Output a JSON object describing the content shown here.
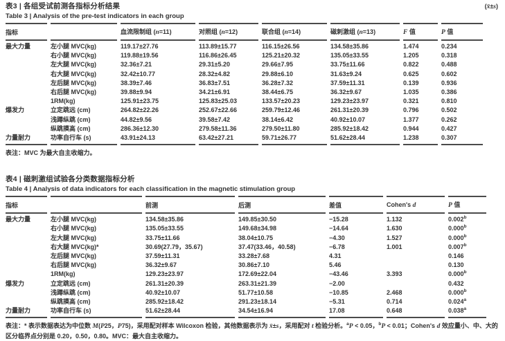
{
  "page": {
    "background": "#ffffff",
    "text_color": "#333333",
    "rule_color": "#4a4a4a"
  },
  "table3": {
    "title_zh": "表3 | 各组受试前测各指标分析结果",
    "title_en": "Table 3 | Analysis of the pre-test indicators in each group",
    "unit_note": "(~x̄~±~s~)",
    "columns": [
      "指标",
      "",
      "血流限制组 (~n~=11)",
      "对照组 (~n~=12)",
      "联合组 (~n~=14)",
      "磁刺激组 (~n~=13)",
      "~F~ 值",
      "~P~ 值"
    ],
    "rows": [
      [
        "最大力量",
        "左小腿 MVC(kg)",
        "119.17±27.76",
        "113.89±15.77",
        "116.15±26.56",
        "134.58±35.86",
        "1.474",
        "0.234"
      ],
      [
        "",
        "右小腿 MVC(kg)",
        "119.88±19.56",
        "116.86±26.45",
        "125.21±20.32",
        "135.05±33.55",
        "1.205",
        "0.318"
      ],
      [
        "",
        "左大腿 MVC(kg)",
        "32.36±7.21",
        "29.31±5.20",
        "29.66±7.95",
        "33.75±11.66",
        "0.822",
        "0.488"
      ],
      [
        "",
        "右大腿 MVC(kg)",
        "32.42±10.77",
        "28.32±4.82",
        "29.88±6.10",
        "31.63±9.24",
        "0.625",
        "0.602"
      ],
      [
        "",
        "左后腿 MVC(kg)",
        "38.39±7.46",
        "36.83±7.51",
        "36.28±7.32",
        "37.59±11.31",
        "0.139",
        "0.936"
      ],
      [
        "",
        "右后腿 MVC(kg)",
        "39.88±9.94",
        "34.21±6.91",
        "38.44±6.75",
        "36.32±9.67",
        "1.035",
        "0.386"
      ],
      [
        "",
        "1RM(kg)",
        "125.91±23.75",
        "125.83±25.03",
        "133.57±20.23",
        "129.23±23.97",
        "0.321",
        "0.810"
      ],
      [
        "爆发力",
        "立定跳远 (cm)",
        "264.82±22.26",
        "252.67±22.66",
        "259.79±12.46",
        "261.31±20.39",
        "0.796",
        "0.502"
      ],
      [
        "",
        "浅蹲纵跳 (cm)",
        "44.82±9.56",
        "39.58±7.42",
        "38.14±6.42",
        "40.92±10.07",
        "1.377",
        "0.262"
      ],
      [
        "",
        "纵跳摸高 (cm)",
        "286.36±12.30",
        "279.58±11.36",
        "279.50±11.80",
        "285.92±18.42",
        "0.944",
        "0.427"
      ],
      [
        "力量耐力",
        "功率自行车 (s)",
        "43.91±24.13",
        "63.42±27.21",
        "59.71±26.77",
        "51.62±28.44",
        "1.238",
        "0.307"
      ]
    ],
    "note": "表注：MVC 为最大自主收缩力。"
  },
  "table4": {
    "title_zh": "表4 | 磁刺激组试验各分类数据指标分析",
    "title_en": "Table 4 | Analysis of data indicators for each classification in the magnetic stimulation group",
    "columns": [
      "指标",
      "",
      "前测",
      "后测",
      "差值",
      "Cohen's ~d~",
      "~P~ 值"
    ],
    "rows": [
      [
        "最大力量",
        "左小腿 MVC(kg)",
        "134.58±35.86",
        "149.85±30.50",
        "−15.28",
        "1.132",
        "0.002^b"
      ],
      [
        "",
        "右小腿 MVC(kg)",
        "135.05±33.55",
        "149.68±34.98",
        "−14.64",
        "1.630",
        "0.000^b"
      ],
      [
        "",
        "左大腿 MVC(kg)",
        "33.75±11.66",
        "38.04±10.75",
        "−4.30",
        "1.527",
        "0.000^b"
      ],
      [
        "",
        "右大腿 MVC(kg)*",
        "30.69(27.79，35.67)",
        "37.47(33.46，40.58)",
        "−6.78",
        "1.001",
        "0.007^b"
      ],
      [
        "",
        "左后腿 MVC(kg)",
        "37.59±11.31",
        "33.28±7.68",
        "4.31",
        "",
        "0.146"
      ],
      [
        "",
        "右后腿 MVC(kg)",
        "36.32±9.67",
        "30.86±7.10",
        "5.46",
        "",
        "0.130"
      ],
      [
        "",
        "1RM(kg)",
        "129.23±23.97",
        "172.69±22.04",
        "−43.46",
        "3.393",
        "0.000^b"
      ],
      [
        "爆发力",
        "立定跳远 (cm)",
        "261.31±20.39",
        "263.31±21.39",
        "−2.00",
        "",
        "0.432"
      ],
      [
        "",
        "浅蹲纵跳 (cm)",
        "40.92±10.07",
        "51.77±10.58",
        "−10.85",
        "2.468",
        "0.000^b"
      ],
      [
        "",
        "纵跳摸高 (cm)",
        "285.92±18.42",
        "291.23±18.14",
        "−5.31",
        "0.714",
        "0.024^a"
      ],
      [
        "力量耐力",
        "功率自行车 (s)",
        "51.62±28.44",
        "34.54±16.94",
        "17.08",
        "0.648",
        "0.038^a"
      ]
    ],
    "footnote": "表注：* 表示数据表达为中位数 ~M~(~P~25，~P~75)，采用配对样本 Wilcoxon 检验，其他数据表示为 ~x̄~±~s~，采用配对 ~t~ 检验分析。^a~P~ < 0.05，^b~P~ < 0.01；Cohen's ~d~ 效应量小、中、大的区分临界点分别是 0.20，0.50，0.80。MVC：最大自主收缩力。"
  }
}
